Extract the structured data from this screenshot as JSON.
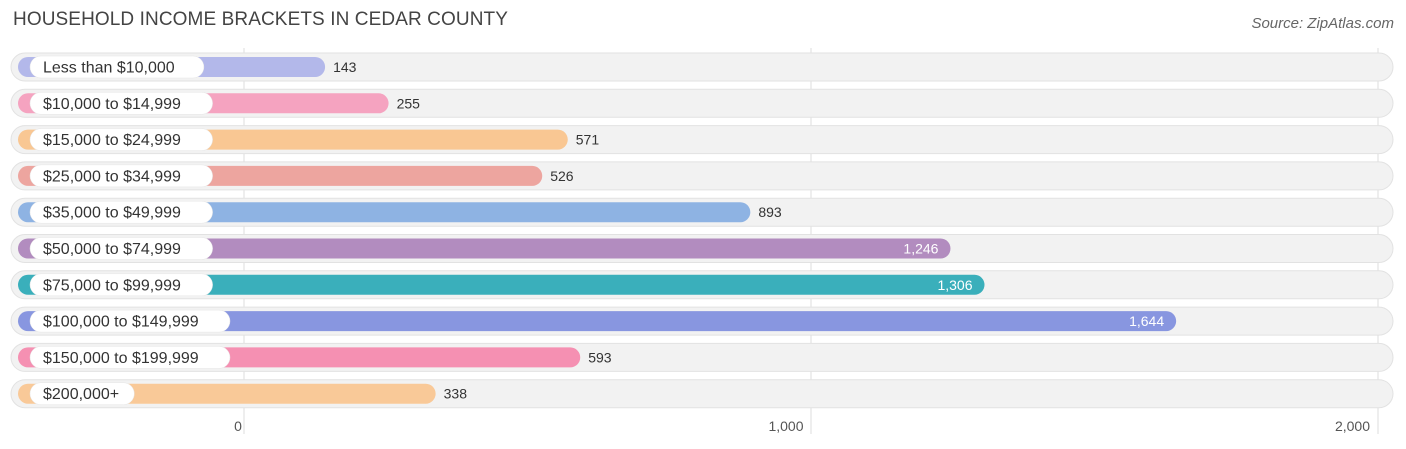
{
  "header": {
    "title": "HOUSEHOLD INCOME BRACKETS IN CEDAR COUNTY",
    "source": "Source: ZipAtlas.com"
  },
  "chart_data": {
    "type": "bar",
    "orientation": "horizontal",
    "title": "HOUSEHOLD INCOME BRACKETS IN CEDAR COUNTY",
    "categories": [
      "Less than $10,000",
      "$10,000 to $14,999",
      "$15,000 to $24,999",
      "$25,000 to $34,999",
      "$35,000 to $49,999",
      "$50,000 to $74,999",
      "$75,000 to $99,999",
      "$100,000 to $149,999",
      "$150,000 to $199,999",
      "$200,000+"
    ],
    "values": [
      143,
      255,
      571,
      526,
      893,
      1246,
      1306,
      1644,
      593,
      338
    ],
    "value_labels": [
      "143",
      "255",
      "571",
      "526",
      "893",
      "1,246",
      "1,306",
      "1,644",
      "593",
      "338"
    ],
    "colors": [
      "#b3b8ea",
      "#f5a3c0",
      "#f9c793",
      "#eda59f",
      "#8eb3e3",
      "#b28cbf",
      "#3aafbb",
      "#8896e0",
      "#f590b2",
      "#f9c998"
    ],
    "xlim": [
      0,
      2000
    ],
    "xticks": [
      0,
      1000,
      2000
    ],
    "xtick_labels": [
      "0",
      "1,000",
      "2,000"
    ],
    "grid": true
  }
}
